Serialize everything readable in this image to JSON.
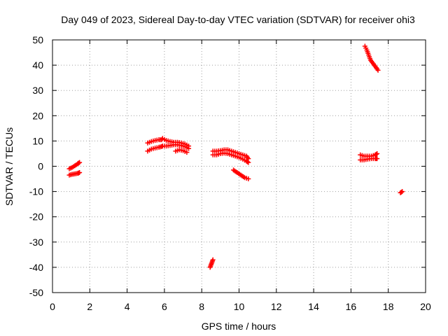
{
  "chart_data": {
    "type": "scatter",
    "title": "Day 049 of 2023, Sidereal Day-to-day VTEC variation (SDTVAR) for receiver ohi3",
    "xlabel": "GPS time / hours",
    "ylabel": "SDTVAR / TECUs",
    "xlim": [
      0,
      20
    ],
    "ylim": [
      -50,
      50
    ],
    "xticks": [
      "0",
      "2",
      "4",
      "6",
      "8",
      "10",
      "12",
      "14",
      "16",
      "18",
      "20"
    ],
    "yticks": [
      "50",
      "40",
      "30",
      "20",
      "10",
      "0",
      "-10",
      "-20",
      "-30",
      "-40",
      "-50"
    ],
    "grid": true,
    "marker": "+",
    "color": "#ff0000",
    "segments": [
      {
        "x": [
          0.9,
          1.05,
          1.2,
          1.35,
          1.45
        ],
        "y": [
          -1.0,
          -0.5,
          0.2,
          1.0,
          1.5
        ]
      },
      {
        "x": [
          0.9,
          1.05,
          1.2,
          1.35,
          1.45
        ],
        "y": [
          -3.5,
          -3.2,
          -3.0,
          -2.8,
          -2.5
        ]
      },
      {
        "x": [
          5.1,
          5.3,
          5.5,
          5.7,
          5.85
        ],
        "y": [
          9.2,
          9.8,
          10.2,
          10.5,
          10.5
        ]
      },
      {
        "x": [
          5.1,
          5.3,
          5.5,
          5.7,
          5.85
        ],
        "y": [
          6.0,
          6.8,
          7.2,
          7.5,
          7.8
        ]
      },
      {
        "x": [
          5.9,
          6.1,
          6.3,
          6.5,
          6.7,
          6.9,
          7.1,
          7.3
        ],
        "y": [
          11.0,
          10.2,
          9.8,
          9.5,
          9.5,
          9.2,
          8.8,
          8.0
        ]
      },
      {
        "x": [
          5.9,
          6.1,
          6.3,
          6.5,
          6.7,
          6.9,
          7.1,
          7.3
        ],
        "y": [
          8.0,
          8.0,
          8.2,
          8.5,
          8.5,
          8.2,
          7.8,
          7.0
        ]
      },
      {
        "x": [
          6.6,
          6.8,
          7.0,
          7.2
        ],
        "y": [
          6.0,
          6.5,
          6.2,
          5.5
        ]
      },
      {
        "x": [
          8.45,
          8.5,
          8.55,
          8.6
        ],
        "y": [
          -40.0,
          -39.0,
          -38.0,
          -37.0
        ]
      },
      {
        "x": [
          8.6,
          8.8,
          9.0,
          9.2,
          9.4,
          9.6,
          9.8,
          10.0,
          10.2,
          10.4,
          10.5
        ],
        "y": [
          6.0,
          6.0,
          6.2,
          6.5,
          6.5,
          6.0,
          5.5,
          5.0,
          4.5,
          4.0,
          3.0
        ]
      },
      {
        "x": [
          8.6,
          8.8,
          9.0,
          9.2,
          9.4,
          9.6,
          9.8,
          10.0,
          10.2,
          10.4,
          10.5
        ],
        "y": [
          4.5,
          4.5,
          5.0,
          5.2,
          5.0,
          4.5,
          4.0,
          3.5,
          2.8,
          2.0,
          1.5
        ]
      },
      {
        "x": [
          9.7,
          9.9,
          10.1,
          10.3,
          10.5
        ],
        "y": [
          -1.5,
          -2.5,
          -3.5,
          -4.5,
          -5.0
        ]
      },
      {
        "x": [
          16.5,
          16.7,
          16.9,
          17.1,
          17.3,
          17.4
        ],
        "y": [
          4.5,
          4.0,
          4.0,
          4.0,
          4.5,
          5.0
        ]
      },
      {
        "x": [
          16.5,
          16.7,
          16.9,
          17.1,
          17.3,
          17.4
        ],
        "y": [
          2.5,
          2.5,
          2.8,
          3.0,
          3.0,
          3.0
        ]
      },
      {
        "x": [
          16.75,
          16.85,
          16.95,
          17.05,
          17.15,
          17.25,
          17.35,
          17.45
        ],
        "y": [
          47.5,
          46.0,
          44.0,
          42.0,
          41.0,
          40.0,
          39.0,
          38.0
        ]
      },
      {
        "x": [
          18.65,
          18.75
        ],
        "y": [
          -10.5,
          -10.0
        ]
      }
    ]
  }
}
